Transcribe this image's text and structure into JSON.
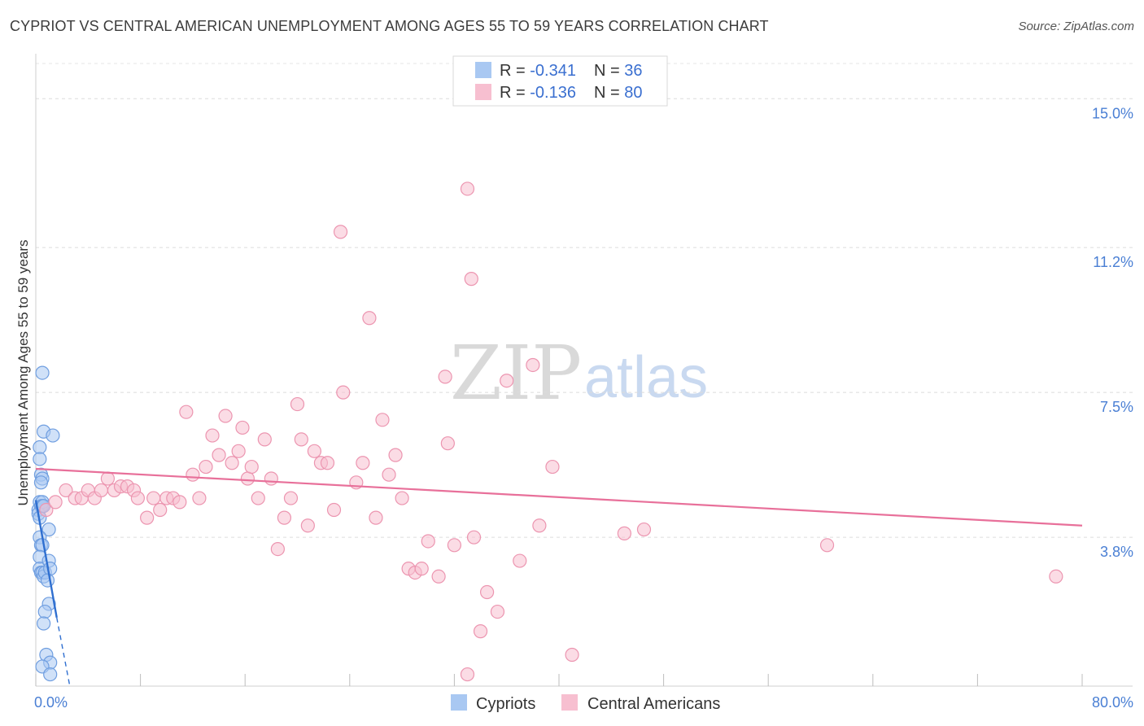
{
  "title": "CYPRIOT VS CENTRAL AMERICAN UNEMPLOYMENT AMONG AGES 55 TO 59 YEARS CORRELATION CHART",
  "source": "Source: ZipAtlas.com",
  "watermark": {
    "zip": "ZIP",
    "atlas": "atlas"
  },
  "legend": {
    "rows": [
      {
        "r_label": "R = ",
        "r_value": "-0.341",
        "n_label": "N = ",
        "n_value": "36",
        "color": "#a9c8f2",
        "stroke": "#7aa6e2"
      },
      {
        "r_label": "R = ",
        "r_value": "-0.136",
        "n_label": "N = ",
        "n_value": "80",
        "color": "#f7bfd0",
        "stroke": "#ec95b0"
      }
    ]
  },
  "chart_data": {
    "type": "scatter",
    "title": "CYPRIOT VS CENTRAL AMERICAN UNEMPLOYMENT AMONG AGES 55 TO 59 YEARS CORRELATION CHART",
    "xlabel": "",
    "ylabel": "Unemployment Among Ages 55 to 59 years",
    "xlim": [
      0,
      80
    ],
    "ylim": [
      0,
      15.9
    ],
    "x_tick_labels": [
      "0.0%",
      "80.0%"
    ],
    "y_ticks": [
      3.8,
      7.5,
      11.2,
      15.0
    ],
    "y_tick_labels": [
      "3.8%",
      "7.5%",
      "11.2%",
      "15.0%"
    ],
    "legend_position": "top-center",
    "series": [
      {
        "name": "Cypriots",
        "color": "#a9c8f2",
        "stroke": "#6f9ee0",
        "trend_color": "#2f6fd0",
        "trend": {
          "x0": 0.0,
          "y0": 4.75,
          "x1": 1.6,
          "y1": 1.75,
          "dash_to_x": 2.6
        },
        "points": [
          [
            0.2,
            4.5
          ],
          [
            0.3,
            4.7
          ],
          [
            0.4,
            4.6
          ],
          [
            0.5,
            4.7
          ],
          [
            0.2,
            4.4
          ],
          [
            0.3,
            4.3
          ],
          [
            0.5,
            8.0
          ],
          [
            0.3,
            6.1
          ],
          [
            0.6,
            6.5
          ],
          [
            1.3,
            6.4
          ],
          [
            0.3,
            5.8
          ],
          [
            0.4,
            5.4
          ],
          [
            0.5,
            5.3
          ],
          [
            0.4,
            5.2
          ],
          [
            0.5,
            4.6
          ],
          [
            0.6,
            4.6
          ],
          [
            1.0,
            4.0
          ],
          [
            0.3,
            3.8
          ],
          [
            0.4,
            3.6
          ],
          [
            0.5,
            3.6
          ],
          [
            0.3,
            3.3
          ],
          [
            0.3,
            3.0
          ],
          [
            0.4,
            2.9
          ],
          [
            0.5,
            2.9
          ],
          [
            0.6,
            2.8
          ],
          [
            0.7,
            2.9
          ],
          [
            1.0,
            3.2
          ],
          [
            1.1,
            3.0
          ],
          [
            0.9,
            2.7
          ],
          [
            1.0,
            2.1
          ],
          [
            0.7,
            1.9
          ],
          [
            0.6,
            1.6
          ],
          [
            0.8,
            0.8
          ],
          [
            1.1,
            0.6
          ],
          [
            0.5,
            0.5
          ],
          [
            1.1,
            0.3
          ]
        ]
      },
      {
        "name": "Central Americans",
        "color": "#f7bfd0",
        "stroke": "#ec95b0",
        "trend_color": "#e8709a",
        "trend": {
          "x0": 0.0,
          "y0": 5.55,
          "x1": 80.0,
          "y1": 4.1
        },
        "points": [
          [
            0.8,
            4.5
          ],
          [
            1.5,
            4.7
          ],
          [
            2.3,
            5.0
          ],
          [
            3.0,
            4.8
          ],
          [
            3.5,
            4.8
          ],
          [
            4.0,
            5.0
          ],
          [
            4.5,
            4.8
          ],
          [
            5.0,
            5.0
          ],
          [
            5.5,
            5.3
          ],
          [
            6.0,
            5.0
          ],
          [
            6.5,
            5.1
          ],
          [
            7.0,
            5.1
          ],
          [
            7.5,
            5.0
          ],
          [
            7.8,
            4.8
          ],
          [
            8.5,
            4.3
          ],
          [
            9.0,
            4.8
          ],
          [
            9.5,
            4.5
          ],
          [
            10.0,
            4.8
          ],
          [
            10.5,
            4.8
          ],
          [
            11.0,
            4.7
          ],
          [
            11.5,
            7.0
          ],
          [
            12.0,
            5.4
          ],
          [
            12.5,
            4.8
          ],
          [
            13.0,
            5.6
          ],
          [
            13.5,
            6.4
          ],
          [
            14.0,
            5.9
          ],
          [
            14.5,
            6.9
          ],
          [
            15.0,
            5.7
          ],
          [
            15.5,
            6.0
          ],
          [
            15.8,
            6.6
          ],
          [
            16.2,
            5.3
          ],
          [
            16.5,
            5.6
          ],
          [
            17.0,
            4.8
          ],
          [
            17.5,
            6.3
          ],
          [
            18.0,
            5.3
          ],
          [
            18.5,
            3.5
          ],
          [
            19.0,
            4.3
          ],
          [
            19.5,
            4.8
          ],
          [
            20.0,
            7.2
          ],
          [
            20.3,
            6.3
          ],
          [
            20.8,
            4.1
          ],
          [
            21.3,
            6.0
          ],
          [
            21.8,
            5.7
          ],
          [
            22.3,
            5.7
          ],
          [
            22.8,
            4.5
          ],
          [
            23.3,
            11.6
          ],
          [
            23.5,
            7.5
          ],
          [
            24.5,
            5.2
          ],
          [
            25.0,
            5.7
          ],
          [
            25.5,
            9.4
          ],
          [
            26.0,
            4.3
          ],
          [
            26.5,
            6.8
          ],
          [
            27.0,
            5.4
          ],
          [
            27.5,
            5.9
          ],
          [
            28.0,
            4.8
          ],
          [
            28.5,
            3.0
          ],
          [
            29.0,
            2.9
          ],
          [
            29.5,
            3.0
          ],
          [
            30.0,
            3.7
          ],
          [
            30.8,
            2.8
          ],
          [
            31.3,
            7.9
          ],
          [
            31.5,
            6.2
          ],
          [
            32.0,
            3.6
          ],
          [
            33.0,
            12.7
          ],
          [
            33.3,
            10.4
          ],
          [
            33.5,
            3.8
          ],
          [
            33.0,
            0.3
          ],
          [
            34.0,
            1.4
          ],
          [
            34.5,
            2.4
          ],
          [
            35.3,
            1.9
          ],
          [
            36.0,
            7.8
          ],
          [
            37.0,
            3.2
          ],
          [
            38.0,
            8.2
          ],
          [
            38.5,
            4.1
          ],
          [
            39.5,
            5.6
          ],
          [
            41.0,
            0.8
          ],
          [
            45.0,
            3.9
          ],
          [
            46.5,
            4.0
          ],
          [
            60.5,
            3.6
          ],
          [
            78.0,
            2.8
          ]
        ]
      }
    ]
  }
}
